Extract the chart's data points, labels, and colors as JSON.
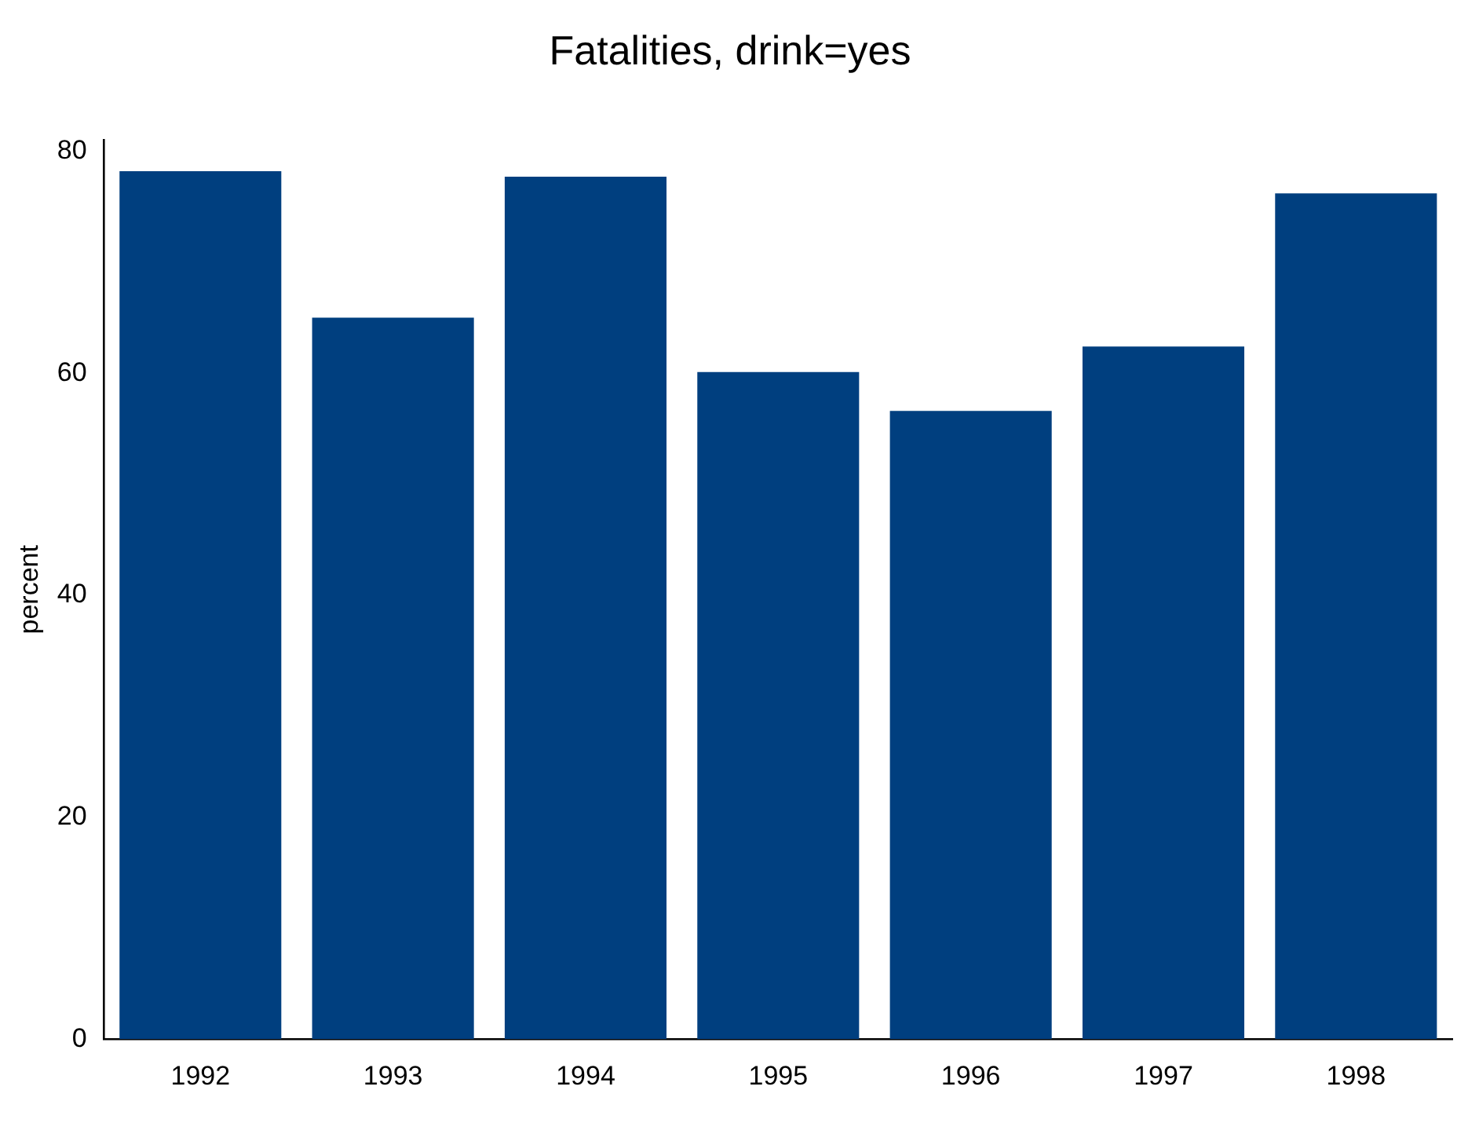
{
  "chart_data": {
    "type": "bar",
    "title": "Fatalities, drink=yes",
    "ylabel": "percent",
    "categories": [
      "1992",
      "1993",
      "1994",
      "1995",
      "1996",
      "1997",
      "1998"
    ],
    "values": [
      78.2,
      65.0,
      77.7,
      60.1,
      56.6,
      62.4,
      76.2
    ],
    "color": "#003f7f",
    "ylim": [
      0,
      81
    ],
    "yticks": [
      0,
      20,
      40,
      60,
      80
    ],
    "grid": false,
    "legend": false
  }
}
